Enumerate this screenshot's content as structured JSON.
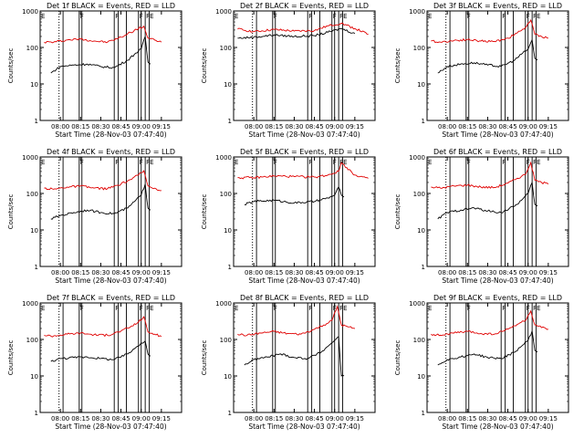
{
  "chart_data": [
    {
      "type": "line",
      "title": "Det 1f BLACK = Events, RED = LLD",
      "xlabel": "Start Time (28-Nov-03 07:47:40)",
      "ylabel": "Counts/sec",
      "yscale": "log",
      "ylim": [
        1,
        1000
      ],
      "yticks": [
        "1",
        "10",
        "100",
        "1000"
      ],
      "xticks": [
        "08:00",
        "08:15",
        "08:30",
        "08:45",
        "09:00",
        "09:15"
      ],
      "grid": false,
      "series": [
        {
          "name": "RED",
          "color": "#e00000",
          "x": [
            "07:48",
            "07:55",
            "08:05",
            "08:15",
            "08:25",
            "08:35",
            "08:45",
            "08:52",
            "08:58",
            "09:02",
            "09:05",
            "09:10",
            "09:15"
          ],
          "y": [
            140,
            140,
            160,
            170,
            150,
            140,
            190,
            260,
            330,
            380,
            180,
            160,
            140
          ]
        },
        {
          "name": "BLACK",
          "color": "#000000",
          "x": [
            "07:53",
            "08:00",
            "08:10",
            "08:20",
            "08:30",
            "08:40",
            "08:50",
            "08:56",
            "09:00",
            "09:03",
            "09:05",
            "09:07"
          ],
          "y": [
            20,
            30,
            33,
            35,
            30,
            28,
            45,
            70,
            90,
            200,
            40,
            35
          ]
        }
      ]
    },
    {
      "type": "line",
      "title": "Det 2f BLACK = Events, RED = LLD",
      "xlabel": "Start Time (28-Nov-03 07:47:40)",
      "ylabel": "Counts/sec",
      "yscale": "log",
      "ylim": [
        1,
        1000
      ],
      "yticks": [
        "1",
        "10",
        "100",
        "1000"
      ],
      "xticks": [
        "08:00",
        "08:15",
        "08:30",
        "08:45",
        "09:00",
        "09:15"
      ],
      "grid": false,
      "series": [
        {
          "name": "RED",
          "color": "#e00000",
          "x": [
            "07:48",
            "08:00",
            "08:15",
            "08:30",
            "08:45",
            "08:55",
            "09:05",
            "09:15",
            "09:25"
          ],
          "y": [
            320,
            270,
            310,
            280,
            290,
            390,
            460,
            330,
            230
          ]
        },
        {
          "name": "BLACK",
          "color": "#000000",
          "x": [
            "07:48",
            "08:00",
            "08:15",
            "08:30",
            "08:45",
            "08:55",
            "09:05",
            "09:15"
          ],
          "y": [
            180,
            190,
            220,
            200,
            210,
            260,
            330,
            240
          ]
        }
      ]
    },
    {
      "type": "line",
      "title": "Det 3f BLACK = Events, RED = LLD",
      "xlabel": "Start Time (28-Nov-03 07:47:40)",
      "ylabel": "Counts/sec",
      "yscale": "log",
      "ylim": [
        1,
        1000
      ],
      "yticks": [
        "1",
        "10",
        "100",
        "1000"
      ],
      "xticks": [
        "08:00",
        "08:15",
        "08:30",
        "08:45",
        "09:00",
        "09:15"
      ],
      "grid": false,
      "series": [
        {
          "name": "RED",
          "color": "#e00000",
          "x": [
            "07:48",
            "07:55",
            "08:05",
            "08:15",
            "08:25",
            "08:35",
            "08:45",
            "08:52",
            "08:58",
            "09:02",
            "09:05",
            "09:10",
            "09:15"
          ],
          "y": [
            150,
            140,
            155,
            165,
            150,
            145,
            180,
            250,
            350,
            560,
            230,
            200,
            180
          ]
        },
        {
          "name": "BLACK",
          "color": "#000000",
          "x": [
            "07:53",
            "08:00",
            "08:10",
            "08:20",
            "08:30",
            "08:40",
            "08:50",
            "08:56",
            "09:00",
            "09:03",
            "09:05",
            "09:07"
          ],
          "y": [
            20,
            30,
            35,
            38,
            33,
            30,
            45,
            70,
            90,
            160,
            50,
            45
          ]
        }
      ]
    },
    {
      "type": "line",
      "title": "Det 4f BLACK = Events, RED = LLD",
      "xlabel": "Start Time (28-Nov-03 07:47:40)",
      "ylabel": "Counts/sec",
      "yscale": "log",
      "ylim": [
        1,
        1000
      ],
      "yticks": [
        "1",
        "10",
        "100",
        "1000"
      ],
      "xticks": [
        "08:00",
        "08:15",
        "08:30",
        "08:45",
        "09:00",
        "09:15"
      ],
      "grid": false,
      "series": [
        {
          "name": "RED",
          "color": "#e00000",
          "x": [
            "07:48",
            "07:55",
            "08:05",
            "08:15",
            "08:25",
            "08:35",
            "08:45",
            "08:52",
            "08:58",
            "09:02",
            "09:05",
            "09:10",
            "09:15"
          ],
          "y": [
            140,
            130,
            150,
            160,
            140,
            135,
            180,
            240,
            320,
            420,
            160,
            140,
            120
          ]
        },
        {
          "name": "BLACK",
          "color": "#000000",
          "x": [
            "07:53",
            "08:00",
            "08:10",
            "08:20",
            "08:30",
            "08:40",
            "08:50",
            "08:56",
            "09:00",
            "09:03",
            "09:05",
            "09:07"
          ],
          "y": [
            20,
            25,
            30,
            35,
            30,
            28,
            40,
            65,
            90,
            180,
            40,
            35
          ]
        }
      ]
    },
    {
      "type": "line",
      "title": "Det 5f BLACK = Events, RED = LLD",
      "xlabel": "Start Time (28-Nov-03 07:47:40)",
      "ylabel": "Counts/sec",
      "yscale": "log",
      "ylim": [
        1,
        1000
      ],
      "yticks": [
        "1",
        "10",
        "100",
        "1000"
      ],
      "xticks": [
        "08:00",
        "08:15",
        "08:30",
        "08:45",
        "09:00",
        "09:15"
      ],
      "grid": false,
      "series": [
        {
          "name": "RED",
          "color": "#e00000",
          "x": [
            "07:48",
            "08:00",
            "08:15",
            "08:30",
            "08:45",
            "08:55",
            "09:03",
            "09:05",
            "09:15",
            "09:25"
          ],
          "y": [
            270,
            270,
            300,
            290,
            280,
            320,
            400,
            700,
            320,
            260
          ]
        },
        {
          "name": "BLACK",
          "color": "#000000",
          "x": [
            "07:53",
            "08:00",
            "08:15",
            "08:30",
            "08:45",
            "08:55",
            "09:00",
            "09:03",
            "09:05",
            "09:07"
          ],
          "y": [
            50,
            60,
            65,
            55,
            60,
            75,
            90,
            150,
            90,
            80
          ]
        }
      ]
    },
    {
      "type": "line",
      "title": "Det 6f BLACK = Events, RED = LLD",
      "xlabel": "Start Time (28-Nov-03 07:47:40)",
      "ylabel": "Counts/sec",
      "yscale": "log",
      "ylim": [
        1,
        1000
      ],
      "yticks": [
        "1",
        "10",
        "100",
        "1000"
      ],
      "xticks": [
        "08:00",
        "08:15",
        "08:30",
        "08:45",
        "09:00",
        "09:15"
      ],
      "grid": false,
      "series": [
        {
          "name": "RED",
          "color": "#e00000",
          "x": [
            "07:48",
            "07:55",
            "08:05",
            "08:15",
            "08:25",
            "08:35",
            "08:45",
            "08:52",
            "08:58",
            "09:02",
            "09:05",
            "09:10",
            "09:15"
          ],
          "y": [
            150,
            140,
            160,
            170,
            150,
            145,
            190,
            260,
            330,
            700,
            230,
            200,
            180
          ]
        },
        {
          "name": "BLACK",
          "color": "#000000",
          "x": [
            "07:53",
            "08:00",
            "08:10",
            "08:20",
            "08:30",
            "08:40",
            "08:50",
            "08:56",
            "09:00",
            "09:03",
            "09:05",
            "09:07"
          ],
          "y": [
            20,
            30,
            35,
            40,
            33,
            30,
            45,
            70,
            100,
            200,
            50,
            45
          ]
        }
      ]
    },
    {
      "type": "line",
      "title": "Det 7f BLACK = Events, RED = LLD",
      "xlabel": "Start Time (28-Nov-03 07:47:40)",
      "ylabel": "Counts/sec",
      "yscale": "log",
      "ylim": [
        1,
        1000
      ],
      "yticks": [
        "1",
        "10",
        "100",
        "1000"
      ],
      "xticks": [
        "08:00",
        "08:15",
        "08:30",
        "08:45",
        "09:00",
        "09:15"
      ],
      "grid": false,
      "series": [
        {
          "name": "RED",
          "color": "#e00000",
          "x": [
            "07:48",
            "07:55",
            "08:05",
            "08:15",
            "08:25",
            "08:35",
            "08:45",
            "08:52",
            "08:58",
            "09:02",
            "09:05",
            "09:10",
            "09:15"
          ],
          "y": [
            130,
            125,
            140,
            150,
            135,
            130,
            170,
            220,
            300,
            420,
            160,
            140,
            120
          ]
        },
        {
          "name": "BLACK",
          "color": "#000000",
          "x": [
            "07:53",
            "08:00",
            "08:10",
            "08:20",
            "08:30",
            "08:40",
            "08:50",
            "08:56",
            "09:00",
            "09:03",
            "09:05",
            "09:07"
          ],
          "y": [
            25,
            30,
            32,
            33,
            30,
            28,
            40,
            60,
            80,
            90,
            40,
            35
          ]
        }
      ]
    },
    {
      "type": "line",
      "title": "Det 8f BLACK = Events, RED = LLD",
      "xlabel": "Start Time (28-Nov-03 07:47:40)",
      "ylabel": "Counts/sec",
      "yscale": "log",
      "ylim": [
        1,
        1000
      ],
      "yticks": [
        "1",
        "10",
        "100",
        "1000"
      ],
      "xticks": [
        "08:00",
        "08:15",
        "08:30",
        "08:45",
        "09:00",
        "09:15"
      ],
      "grid": false,
      "series": [
        {
          "name": "RED",
          "color": "#e00000",
          "x": [
            "07:48",
            "07:55",
            "08:05",
            "08:15",
            "08:25",
            "08:35",
            "08:45",
            "08:52",
            "08:58",
            "09:02",
            "09:05",
            "09:10",
            "09:15"
          ],
          "y": [
            140,
            130,
            150,
            165,
            145,
            140,
            190,
            250,
            330,
            800,
            250,
            220,
            200
          ]
        },
        {
          "name": "BLACK",
          "color": "#000000",
          "x": [
            "07:53",
            "08:00",
            "08:10",
            "08:20",
            "08:30",
            "08:40",
            "08:50",
            "08:56",
            "09:00",
            "09:03",
            "09:05",
            "09:07"
          ],
          "y": [
            20,
            28,
            33,
            40,
            32,
            30,
            45,
            70,
            95,
            120,
            10,
            10
          ]
        }
      ]
    },
    {
      "type": "line",
      "title": "Det 9f BLACK = Events, RED = LLD",
      "xlabel": "Start Time (28-Nov-03 07:47:40)",
      "ylabel": "Counts/sec",
      "yscale": "log",
      "ylim": [
        1,
        1000
      ],
      "yticks": [
        "1",
        "10",
        "100",
        "1000"
      ],
      "xticks": [
        "08:00",
        "08:15",
        "08:30",
        "08:45",
        "09:00",
        "09:15"
      ],
      "grid": false,
      "series": [
        {
          "name": "RED",
          "color": "#e00000",
          "x": [
            "07:48",
            "07:55",
            "08:05",
            "08:15",
            "08:25",
            "08:35",
            "08:45",
            "08:52",
            "08:58",
            "09:02",
            "09:05",
            "09:10",
            "09:15"
          ],
          "y": [
            140,
            130,
            150,
            165,
            145,
            140,
            190,
            260,
            330,
            600,
            250,
            210,
            190
          ]
        },
        {
          "name": "BLACK",
          "color": "#000000",
          "x": [
            "07:53",
            "08:00",
            "08:10",
            "08:20",
            "08:30",
            "08:40",
            "08:50",
            "08:56",
            "09:00",
            "09:03",
            "09:05",
            "09:07"
          ],
          "y": [
            20,
            28,
            33,
            40,
            32,
            30,
            45,
            70,
            95,
            170,
            50,
            45
          ]
        }
      ]
    }
  ]
}
